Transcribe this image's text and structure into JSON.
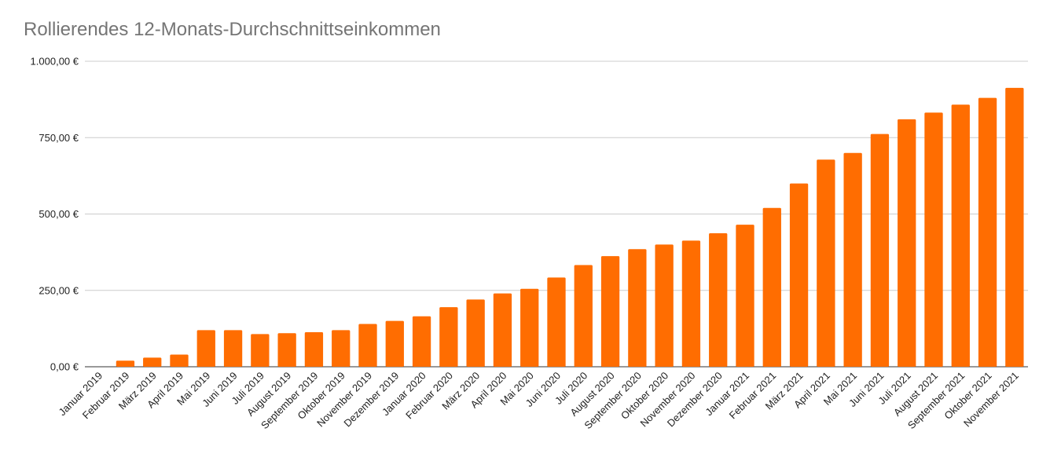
{
  "chart_data": {
    "type": "bar",
    "title": "Rollierendes 12-Monats-Durchschnittseinkommen",
    "xlabel": "",
    "ylabel": "",
    "ylim": [
      0,
      1000
    ],
    "y_ticks": [
      0,
      250,
      500,
      750,
      1000
    ],
    "y_tick_labels": [
      "0,00 €",
      "250,00 €",
      "500,00 €",
      "750,00 €",
      "1.000,00 €"
    ],
    "grid": true,
    "legend": "none",
    "bar_color": "#ff6d01",
    "categories": [
      "Januar 2019",
      "Februar 2019",
      "März 2019",
      "April 2019",
      "Mai 2019",
      "Juni 2019",
      "Juli 2019",
      "August 2019",
      "September 2019",
      "Oktober 2019",
      "November 2019",
      "Dezember 2019",
      "Januar 2020",
      "Februar 2020",
      "März 2020",
      "April 2020",
      "Mai 2020",
      "Juni 2020",
      "Juli 2020",
      "August 2020",
      "September 2020",
      "Oktober 2020",
      "November 2020",
      "Dezember 2020",
      "Januar 2021",
      "Februar 2021",
      "März 2021",
      "April 2021",
      "Mai 2021",
      "Juni 2021",
      "Juli 2021",
      "August 2021",
      "September 2021",
      "Oktober 2021",
      "November 2021"
    ],
    "values": [
      0,
      20,
      30,
      40,
      120,
      120,
      107,
      110,
      113,
      120,
      140,
      150,
      165,
      195,
      220,
      240,
      255,
      292,
      333,
      362,
      385,
      400,
      413,
      437,
      465,
      520,
      600,
      678,
      700,
      762,
      810,
      832,
      858,
      880,
      913
    ]
  }
}
